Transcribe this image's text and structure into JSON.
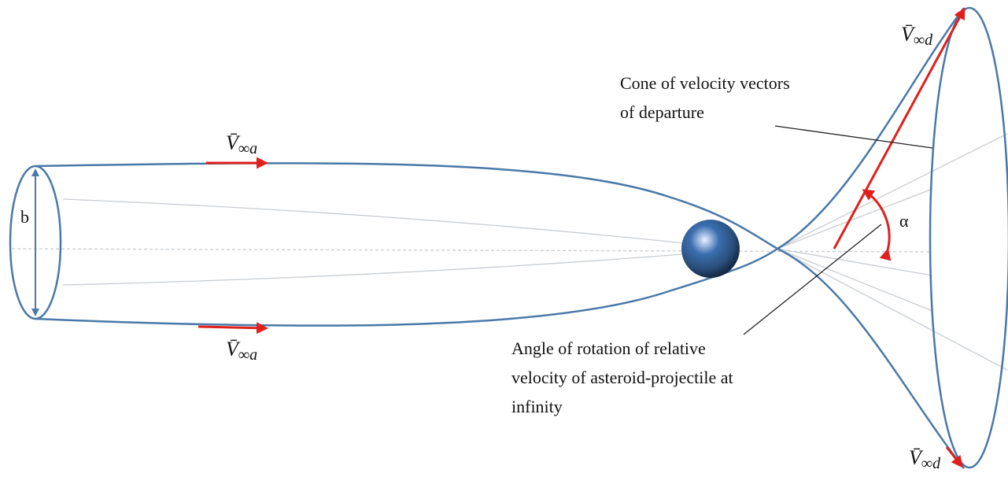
{
  "labels": {
    "b": "b",
    "alpha": "α",
    "v_inf_a": [
      {
        "symbol": "V̄",
        "subscript": "∞a"
      },
      {
        "symbol": "V̄",
        "subscript": "∞a"
      }
    ],
    "v_inf_d": [
      {
        "symbol": "V̄",
        "subscript": "∞d"
      },
      {
        "symbol": "V̄",
        "subscript": "∞d"
      }
    ],
    "cone": [
      "Cone of velocity vectors",
      "of departure"
    ],
    "angle": [
      "Angle of rotation of relative",
      "velocity of asteroid-projectile at",
      "infinity"
    ]
  }
}
